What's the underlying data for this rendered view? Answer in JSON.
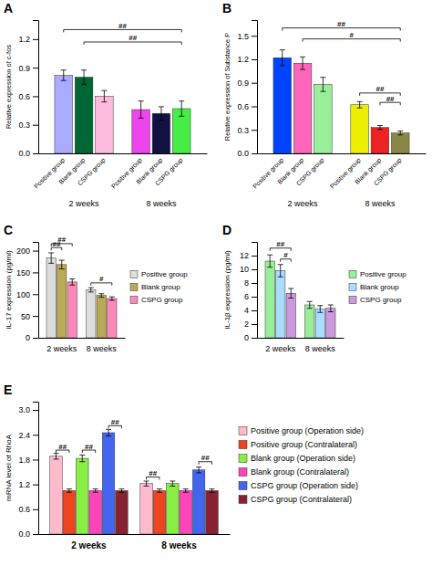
{
  "chart_data": [
    {
      "type": "bar",
      "title": "A",
      "ylabel": "Relative expression of c-fos",
      "categories": [
        "2 weeks",
        "8 weeks"
      ],
      "series": [
        {
          "name": "Positive group",
          "colors": [
            "#AAAAFF",
            "#EE44EE"
          ],
          "values": [
            0.82,
            0.46
          ],
          "errors": [
            0.055,
            0.09
          ]
        },
        {
          "name": "Blank group",
          "colors": [
            "#006633",
            "#111144"
          ],
          "values": [
            0.8,
            0.42
          ],
          "errors": [
            0.075,
            0.07
          ]
        },
        {
          "name": "CSPG group",
          "colors": [
            "#FFBBDD",
            "#44EE44"
          ],
          "values": [
            0.6,
            0.47
          ],
          "errors": [
            0.06,
            0.08
          ]
        }
      ],
      "ylim": [
        0,
        1.4
      ],
      "yticks": [
        {
          "value": 0,
          "label": "0.0"
        },
        0.3,
        0.6,
        0.9,
        1.2
      ],
      "grid": false,
      "legend": false,
      "annotations": [
        {
          "text": "##",
          "y": 1.3,
          "from": {
            "category": "2 weeks",
            "series": "Positive group"
          },
          "to": {
            "category": "8 weeks",
            "series": "CSPG group"
          }
        },
        {
          "text": "##",
          "y": 1.17,
          "from": {
            "category": "2 weeks",
            "series": "Blank group"
          },
          "to": {
            "category": "8 weeks",
            "series": "CSPG group"
          }
        }
      ]
    },
    {
      "type": "bar",
      "title": "B",
      "ylabel": "Relative expression of Substance P",
      "categories": [
        "2 weeks",
        "8 weeks"
      ],
      "series": [
        {
          "name": "Positive group",
          "colors": [
            "#0044FF",
            "#EEEE00"
          ],
          "values": [
            1.22,
            0.62
          ],
          "errors": [
            0.1,
            0.04
          ]
        },
        {
          "name": "Blank group",
          "colors": [
            "#FF66BB",
            "#EE2222"
          ],
          "values": [
            1.15,
            0.33
          ],
          "errors": [
            0.08,
            0.025
          ]
        },
        {
          "name": "CSPG group",
          "colors": [
            "#99EE99",
            "#888844"
          ],
          "values": [
            0.88,
            0.26
          ],
          "errors": [
            0.09,
            0.025
          ]
        }
      ],
      "ylim": [
        0,
        1.7
      ],
      "yticks": [
        {
          "value": 0,
          "label": "0.0"
        },
        0.3,
        0.6,
        0.9,
        1.2,
        1.5
      ],
      "grid": false,
      "legend": false,
      "annotations": [
        {
          "text": "##",
          "y": 1.6,
          "from": {
            "category": "2 weeks",
            "series": "Positive group"
          },
          "to": {
            "category": "8 weeks",
            "series": "CSPG group"
          }
        },
        {
          "text": "#",
          "y": 1.46,
          "from": {
            "category": "2 weeks",
            "series": "Blank group"
          },
          "to": {
            "category": "8 weeks",
            "series": "CSPG group"
          }
        },
        {
          "text": "##",
          "y": 0.77,
          "from": {
            "category": "8 weeks",
            "series": "Positive group"
          },
          "to": {
            "category": "8 weeks",
            "series": "CSPG group"
          }
        },
        {
          "text": "##",
          "y": 0.65,
          "from": {
            "category": "8 weeks",
            "series": "Blank group"
          },
          "to": {
            "category": "8 weeks",
            "series": "CSPG group"
          }
        }
      ]
    },
    {
      "type": "bar",
      "title": "C",
      "ylabel": "IL-17 expression (pg/ml)",
      "categories": [
        "2 weeks",
        "8 weeks"
      ],
      "series": [
        {
          "name": "Positive group",
          "color": "#DDDDDD",
          "values": [
            183,
            110
          ],
          "errors": [
            12,
            5
          ]
        },
        {
          "name": "Blank group",
          "color": "#BBAA55",
          "values": [
            168,
            97
          ],
          "errors": [
            10,
            4
          ]
        },
        {
          "name": "CSPG group",
          "color": "#FF88BB",
          "values": [
            128,
            90
          ],
          "errors": [
            7,
            4
          ]
        }
      ],
      "ylim": [
        0,
        220
      ],
      "yticks": [
        0,
        50,
        100,
        150,
        200
      ],
      "grid": false,
      "legend": "right",
      "annotations": [
        {
          "text": "##",
          "y": 207,
          "from": {
            "category": "2 weeks",
            "series": "Positive group"
          },
          "to": {
            "category": "2 weeks",
            "series": "Blank group"
          }
        },
        {
          "text": "##",
          "y": 216,
          "from": {
            "category": "2 weeks",
            "series": "Positive group"
          },
          "to": {
            "category": "2 weeks",
            "series": "CSPG group"
          }
        },
        {
          "text": "#",
          "y": 126,
          "from": {
            "category": "8 weeks",
            "series": "Positive group"
          },
          "to": {
            "category": "8 weeks",
            "series": "CSPG group"
          }
        }
      ]
    },
    {
      "type": "bar",
      "title": "D",
      "ylabel": "IL-1β expression (pg/ml)",
      "categories": [
        "2 weeks",
        "8 weeks"
      ],
      "series": [
        {
          "name": "Positive group",
          "color": "#99EE99",
          "values": [
            11.2,
            4.8
          ],
          "errors": [
            0.9,
            0.5
          ]
        },
        {
          "name": "Blank group",
          "color": "#AADDFF",
          "values": [
            9.8,
            4.2
          ],
          "errors": [
            0.9,
            0.5
          ]
        },
        {
          "name": "CSPG group",
          "color": "#CC99DD",
          "values": [
            6.5,
            4.3
          ],
          "errors": [
            0.7,
            0.5
          ]
        }
      ],
      "ylim": [
        0,
        14
      ],
      "yticks": [
        0,
        2,
        4,
        6,
        8,
        10,
        12
      ],
      "grid": false,
      "legend": "right",
      "annotations": [
        {
          "text": "##",
          "y": 13.1,
          "from": {
            "category": "2 weeks",
            "series": "Positive group"
          },
          "to": {
            "category": "2 weeks",
            "series": "CSPG group"
          }
        },
        {
          "text": "#",
          "y": 11.5,
          "from": {
            "category": "2 weeks",
            "series": "Blank group"
          },
          "to": {
            "category": "2 weeks",
            "series": "CSPG group"
          }
        }
      ]
    },
    {
      "type": "bar",
      "title": "E",
      "ylabel": "mRNA level of RhoA",
      "categories": [
        "2 weeks",
        "8 weeks"
      ],
      "series": [
        {
          "name": "Positive group (Operation side)",
          "color": "#FFBBCC",
          "values": [
            1.88,
            1.22
          ],
          "errors": [
            0.07,
            0.06
          ]
        },
        {
          "name": "Positive group (Contralateral)",
          "color": "#EE4422",
          "values": [
            1.05,
            1.05
          ],
          "errors": [
            0.04,
            0.04
          ]
        },
        {
          "name": "Blank group (Operation side)",
          "color": "#88EE44",
          "values": [
            1.83,
            1.22
          ],
          "errors": [
            0.08,
            0.06
          ]
        },
        {
          "name": "Blank group (Contralateral)",
          "color": "#FF44BB",
          "values": [
            1.05,
            1.05
          ],
          "errors": [
            0.04,
            0.04
          ]
        },
        {
          "name": "CSPG group (Operation side)",
          "color": "#4466EE",
          "values": [
            2.45,
            1.55
          ],
          "errors": [
            0.08,
            0.07
          ]
        },
        {
          "name": "CSPG group (Contralateral)",
          "color": "#882233",
          "values": [
            1.05,
            1.05
          ],
          "errors": [
            0.04,
            0.04
          ]
        }
      ],
      "ylim": [
        0.0,
        3.2
      ],
      "yticks": [
        {
          "value": 0.0,
          "label": "0.0"
        },
        0.6,
        1.2,
        1.8,
        2.4,
        {
          "value": 3.0,
          "label": "3.0"
        }
      ],
      "grid": false,
      "legend": "right",
      "annotations": [
        {
          "text": "##",
          "y": 2.03,
          "from": {
            "category": "2 weeks",
            "series": "Positive group (Operation side)"
          },
          "to": {
            "category": "2 weeks",
            "series": "Positive group (Contralateral)"
          }
        },
        {
          "text": "##",
          "y": 2.03,
          "from": {
            "category": "2 weeks",
            "series": "Blank group (Operation side)"
          },
          "to": {
            "category": "2 weeks",
            "series": "Blank group (Contralateral)"
          }
        },
        {
          "text": "##",
          "y": 2.62,
          "from": {
            "category": "2 weeks",
            "series": "CSPG group (Operation side)"
          },
          "to": {
            "category": "2 weeks",
            "series": "CSPG group (Contralateral)"
          }
        },
        {
          "text": "##",
          "y": 1.38,
          "from": {
            "category": "8 weeks",
            "series": "Positive group (Operation side)"
          },
          "to": {
            "category": "8 weeks",
            "series": "Positive group (Contralateral)"
          }
        },
        {
          "text": "##",
          "y": 1.75,
          "from": {
            "category": "8 weeks",
            "series": "CSPG group (Operation side)"
          },
          "to": {
            "category": "8 weeks",
            "series": "CSPG group (Contralateral)"
          }
        }
      ]
    }
  ]
}
